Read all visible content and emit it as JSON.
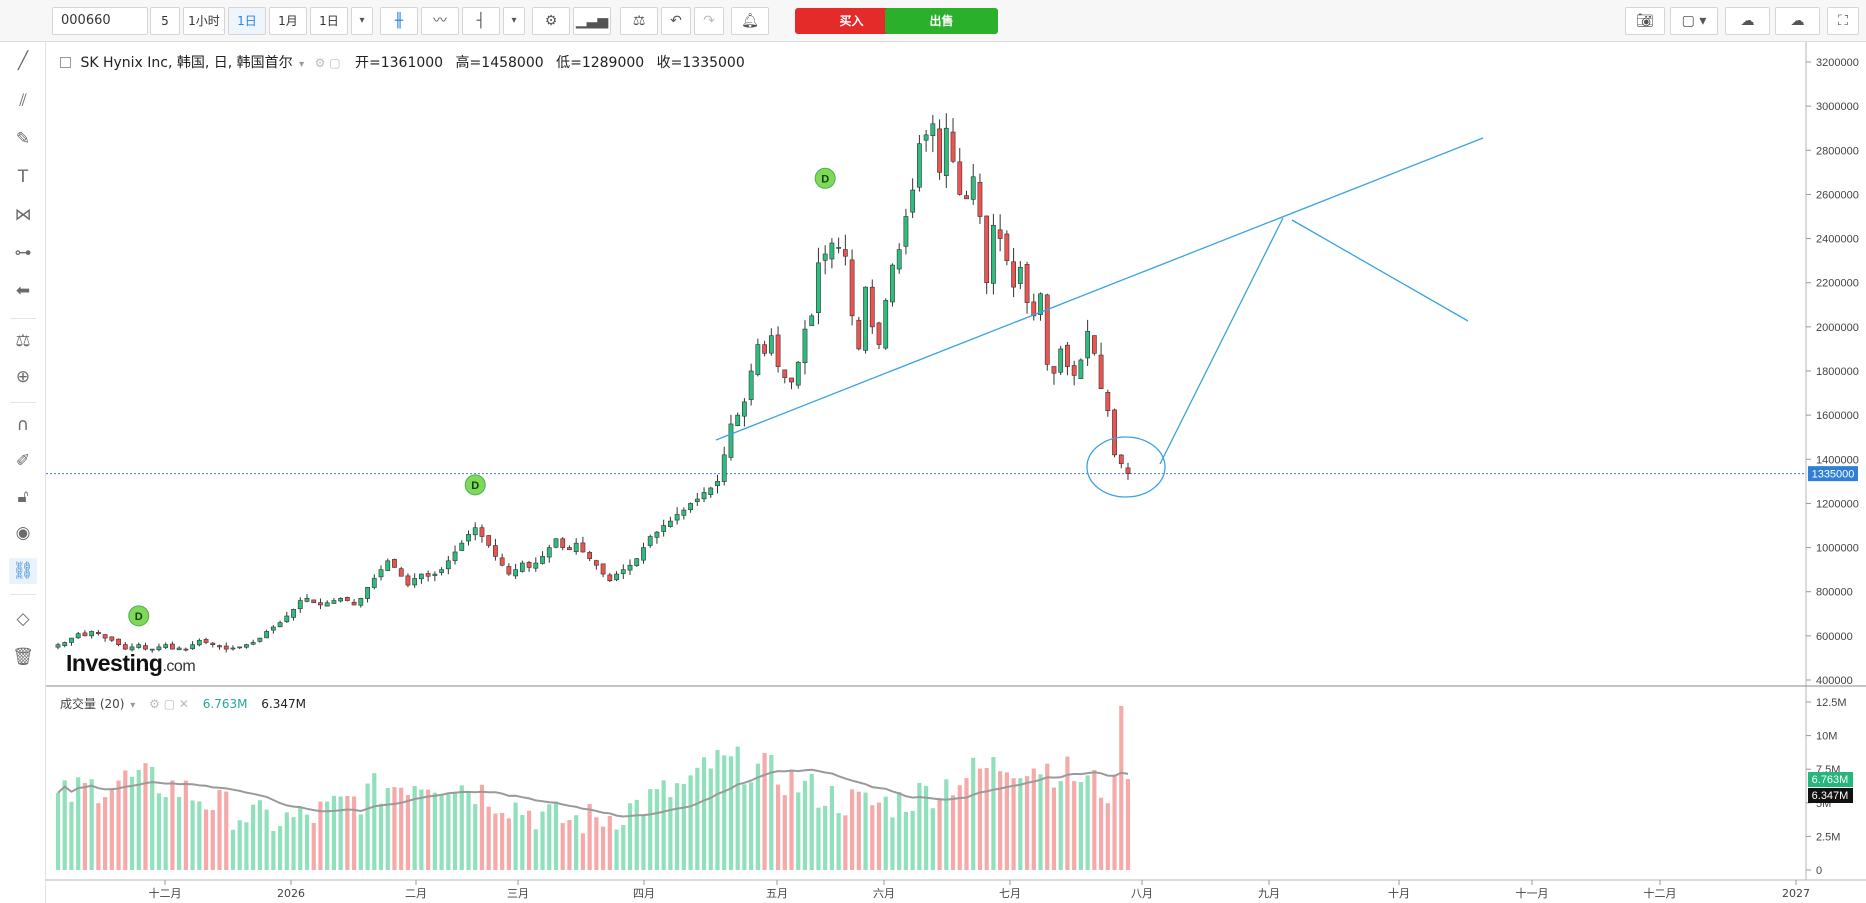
{
  "toolbar": {
    "symbol": "000660",
    "intervals": [
      "5",
      "1小时",
      "1日",
      "1月",
      "1日"
    ],
    "active_interval_index": 2,
    "buy_label": "买入",
    "sell_label": "出售"
  },
  "legend": {
    "title": "SK Hynix Inc, 韩国, 日, 韩国首尔",
    "open_label": "开=",
    "open": "1361000",
    "high_label": "高=",
    "high": "1458000",
    "low_label": "低=",
    "low": "1289000",
    "close_label": "收=",
    "close": "1335000"
  },
  "volume_legend": {
    "title": "成交量 (20)",
    "value1": "6.763M",
    "value2": "6.347M"
  },
  "logo": {
    "brand": "Investing",
    "suffix": ".com"
  },
  "colors": {
    "up": "#26a69a",
    "up_fill": "#2dbd7e",
    "down": "#e05252",
    "down_fill": "#ef5350",
    "accent": "#2f7fd6",
    "trendline": "#3aa3e3"
  },
  "chart_data": [
    {
      "type": "candlestick",
      "title": "SK Hynix Inc, 韩国, 日, 韩国首尔",
      "y_axis_ticks": [
        "3200000",
        "3000000",
        "2800000",
        "2600000",
        "2400000",
        "2200000",
        "2000000",
        "1800000",
        "1600000",
        "1400000",
        "1200000",
        "1000000",
        "800000",
        "600000",
        "400000"
      ],
      "ylim": [
        330000,
        3290000
      ],
      "x_axis_ticks": [
        "十二月",
        "2026",
        "二月",
        "三月",
        "四月",
        "五月",
        "六月",
        "七月",
        "八月",
        "九月",
        "十月",
        "十一月",
        "十二月",
        "2027"
      ],
      "last_price_label": "1335000",
      "dividend_markers": [
        {
          "label": "D",
          "date": "2025-12-02"
        },
        {
          "label": "D",
          "date": "2026-02-27"
        },
        {
          "label": "D",
          "date": "2026-05-26"
        }
      ],
      "close": [
        560000,
        570000,
        590000,
        610000,
        600000,
        620000,
        610000,
        590000,
        580000,
        560000,
        540000,
        550000,
        560000,
        540000,
        540000,
        550000,
        560000,
        540000,
        545000,
        540000,
        560000,
        580000,
        570000,
        560000,
        550000,
        540000,
        545000,
        550000,
        560000,
        570000,
        590000,
        620000,
        640000,
        660000,
        690000,
        720000,
        760000,
        770000,
        750000,
        740000,
        750000,
        760000,
        770000,
        760000,
        740000,
        770000,
        820000,
        860000,
        900000,
        940000,
        910000,
        870000,
        830000,
        860000,
        880000,
        870000,
        880000,
        900000,
        940000,
        980000,
        1020000,
        1060000,
        1090000,
        1050000,
        1010000,
        960000,
        920000,
        880000,
        900000,
        930000,
        910000,
        930000,
        960000,
        1000000,
        1040000,
        1000000,
        990000,
        1020000,
        980000,
        950000,
        920000,
        880000,
        850000,
        880000,
        900000,
        920000,
        950000,
        1000000,
        1050000,
        1070000,
        1100000,
        1120000,
        1150000,
        1170000,
        1200000,
        1220000,
        1250000,
        1270000,
        1300000,
        1420000,
        1560000,
        1600000,
        1660000,
        1800000,
        1920000,
        1880000,
        1960000,
        1820000,
        1770000,
        1750000,
        1840000,
        1990000,
        2050000,
        2290000,
        2330000,
        2380000,
        2360000,
        2320000,
        2050000,
        1900000,
        2180000,
        2000000,
        1920000,
        2120000,
        2280000,
        2350000,
        2500000,
        2620000,
        2830000,
        2870000,
        2920000,
        2700000,
        2900000,
        2750000,
        2600000,
        2580000,
        2680000,
        2500000,
        2200000,
        2460000,
        2400000,
        2300000,
        2180000,
        2270000,
        2110000,
        2050000,
        2150000,
        1830000,
        1790000,
        1900000,
        1820000,
        1780000,
        1850000,
        1980000,
        1880000,
        1720000,
        1620000,
        1420000,
        1380000,
        1335000
      ],
      "volume_ylim": [
        0,
        12500000
      ],
      "volume_ticks": [
        "12.5M",
        "10M",
        "7.5M",
        "5M",
        "2.5M",
        "0"
      ],
      "volume_last_values": [
        "6.763M",
        "6.347M"
      ]
    }
  ]
}
